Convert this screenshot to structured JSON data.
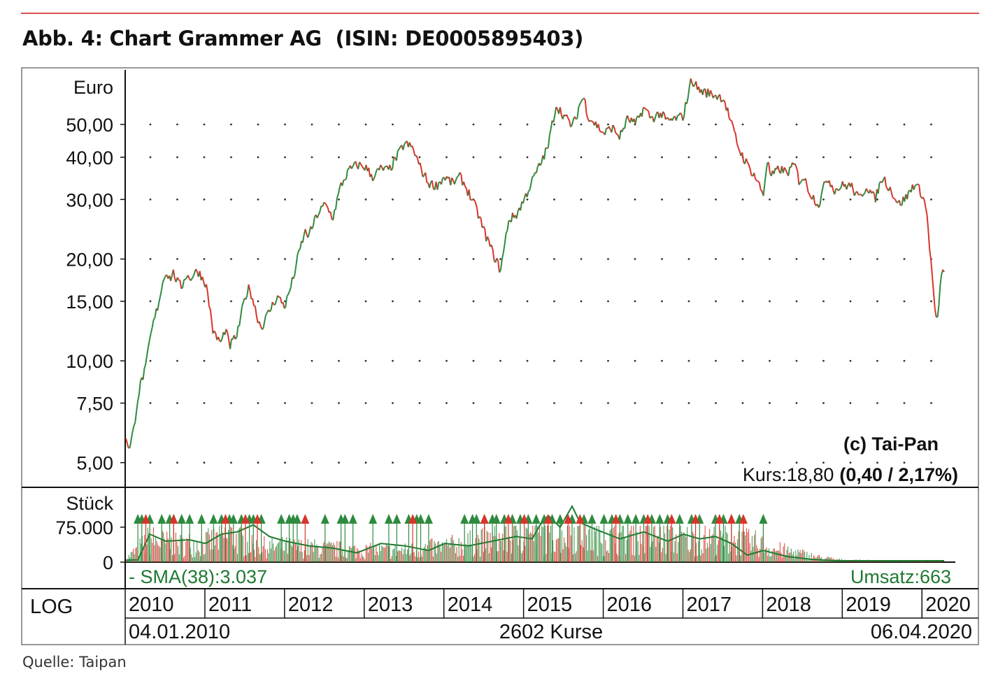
{
  "figure": {
    "title": "Abb. 4: Chart Grammer AG  (ISIN: DE0005895403)",
    "source": "Quelle: Taipan"
  },
  "chart_data": [
    {
      "type": "line",
      "panel": "price",
      "scale": "log",
      "ylabel": "Euro",
      "yticks": [
        {
          "value": 5,
          "label": "5,00"
        },
        {
          "value": 7.5,
          "label": "7,50"
        },
        {
          "value": 10,
          "label": "10,00"
        },
        {
          "value": 15,
          "label": "15,00"
        },
        {
          "value": 20,
          "label": "20,00"
        },
        {
          "value": 30,
          "label": "30,00"
        },
        {
          "value": 40,
          "label": "40,00"
        },
        {
          "value": 50,
          "label": "50,00"
        }
      ],
      "ylim": [
        4.5,
        75
      ],
      "xlim": [
        2010.0,
        2020.27
      ],
      "grid": "dotted",
      "colors": {
        "up": "#2e8b3e",
        "down": "#d9342b"
      },
      "series": [
        {
          "x": [
            2010.0,
            2010.05,
            2010.1,
            2010.15,
            2010.2,
            2010.25,
            2010.3,
            2010.35,
            2010.4,
            2010.45,
            2010.5,
            2010.55,
            2010.6,
            2010.65,
            2010.7,
            2010.75,
            2010.8,
            2010.9,
            2011.0,
            2011.1,
            2011.2,
            2011.25,
            2011.3,
            2011.4,
            2011.5,
            2011.55,
            2011.6,
            2011.65,
            2011.7,
            2011.8,
            2011.9,
            2012.0,
            2012.1,
            2012.2,
            2012.25,
            2012.3,
            2012.4,
            2012.5,
            2012.6,
            2012.7,
            2012.8,
            2012.9,
            2013.0,
            2013.1,
            2013.2,
            2013.3,
            2013.4,
            2013.5,
            2013.6,
            2013.7,
            2013.8,
            2013.9,
            2014.0,
            2014.1,
            2014.2,
            2014.3,
            2014.4,
            2014.5,
            2014.6,
            2014.7,
            2014.75,
            2014.8,
            2014.9,
            2015.0,
            2015.1,
            2015.2,
            2015.3,
            2015.4,
            2015.5,
            2015.6,
            2015.65,
            2015.7,
            2015.75,
            2015.8,
            2015.9,
            2016.0,
            2016.1,
            2016.2,
            2016.3,
            2016.4,
            2016.5,
            2016.6,
            2016.7,
            2016.8,
            2016.9,
            2017.0,
            2017.1,
            2017.2,
            2017.3,
            2017.4,
            2017.5,
            2017.6,
            2017.7,
            2017.8,
            2017.9,
            2018.0,
            2018.05,
            2018.1,
            2018.2,
            2018.3,
            2018.4,
            2018.45,
            2018.5,
            2018.6,
            2018.7,
            2018.8,
            2018.9,
            2019.0,
            2019.1,
            2019.2,
            2019.3,
            2019.4,
            2019.5,
            2019.6,
            2019.7,
            2019.8,
            2019.9,
            2020.0,
            2020.05,
            2020.1,
            2020.15,
            2020.18,
            2020.21,
            2020.23,
            2020.24,
            2020.26
          ],
          "values": [
            5.9,
            5.5,
            6.3,
            7.8,
            8.8,
            9.5,
            11.5,
            13.0,
            14.5,
            16.5,
            18.5,
            17.5,
            18.2,
            17.0,
            16.5,
            18.0,
            17.5,
            18.5,
            17.0,
            12.0,
            11.3,
            12.5,
            11.0,
            12.0,
            15.5,
            16.5,
            15.0,
            13.5,
            12.5,
            14.0,
            15.5,
            14.5,
            17.5,
            22.0,
            24.0,
            23.5,
            27.0,
            29.0,
            26.5,
            33.0,
            36.5,
            38.0,
            37.5,
            35.0,
            37.0,
            36.5,
            40.0,
            44.0,
            42.5,
            37.0,
            33.5,
            33.0,
            35.0,
            33.5,
            35.0,
            31.5,
            28.0,
            24.0,
            21.0,
            18.5,
            21.5,
            26.0,
            27.0,
            30.0,
            34.0,
            38.0,
            43.0,
            57.0,
            53.0,
            49.5,
            52.0,
            58.0,
            60.0,
            53.0,
            50.0,
            47.0,
            49.0,
            46.0,
            52.0,
            50.0,
            56.0,
            52.0,
            54.0,
            51.0,
            52.0,
            53.0,
            68.0,
            63.0,
            62.0,
            61.0,
            60.0,
            50.0,
            42.0,
            38.0,
            35.0,
            31.0,
            39.0,
            35.0,
            37.0,
            36.0,
            38.0,
            34.0,
            35.0,
            31.0,
            29.0,
            35.0,
            32.0,
            33.0,
            33.0,
            30.0,
            33.0,
            30.0,
            35.0,
            32.0,
            29.0,
            30.5,
            33.5,
            31.0,
            27.5,
            20.0,
            14.5,
            12.5,
            15.0,
            19.0,
            17.0,
            18.8
          ]
        }
      ],
      "annotations": {
        "copyright": "(c) Tai-Pan",
        "kurs_label": "Kurs:18,80",
        "kurs_change": "(0,40 / 2,17%)"
      }
    },
    {
      "type": "bar",
      "panel": "volume",
      "ylabel": "Stück",
      "yticks": [
        {
          "value": 0,
          "label": "0"
        },
        {
          "value": 75000,
          "label": "75.000"
        }
      ],
      "ylim": [
        0,
        130000
      ],
      "sma_label": "- SMA(38):3.037",
      "umsatz_label": "Umsatz:663",
      "colors": {
        "up": "#2e8b3e",
        "down": "#d9342b",
        "sma": "#1e7a30"
      },
      "volume_level": {
        "x": [
          2010.0,
          2010.3,
          2010.6,
          2011.0,
          2011.3,
          2011.6,
          2012.0,
          2012.5,
          2013.0,
          2013.5,
          2014.0,
          2014.5,
          2015.0,
          2015.4,
          2015.6,
          2016.0,
          2016.5,
          2017.0,
          2017.5,
          2017.9,
          2018.1,
          2018.4,
          2018.7,
          2019.0,
          2019.5,
          2020.0,
          2020.27
        ],
        "values": [
          8000,
          60000,
          45000,
          50000,
          70000,
          40000,
          40000,
          35000,
          30000,
          30000,
          40000,
          55000,
          70000,
          75000,
          80000,
          60000,
          65000,
          60000,
          60000,
          50000,
          35000,
          25000,
          12000,
          5000,
          3000,
          3000,
          3000
        ]
      },
      "sma": {
        "x": [
          2010.0,
          2010.15,
          2010.3,
          2010.5,
          2010.8,
          2011.0,
          2011.2,
          2011.4,
          2011.6,
          2011.8,
          2012.0,
          2012.3,
          2012.6,
          2012.9,
          2013.2,
          2013.5,
          2013.8,
          2014.0,
          2014.3,
          2014.6,
          2014.9,
          2015.1,
          2015.2,
          2015.3,
          2015.45,
          2015.6,
          2015.7,
          2015.9,
          2016.2,
          2016.5,
          2016.8,
          2017.0,
          2017.2,
          2017.4,
          2017.6,
          2017.8,
          2018.0,
          2018.3,
          2018.6,
          2018.9,
          2019.2,
          2019.6,
          2020.0,
          2020.27
        ],
        "values": [
          4000,
          5000,
          60000,
          45000,
          48000,
          40000,
          60000,
          65000,
          80000,
          55000,
          45000,
          35000,
          30000,
          20000,
          40000,
          35000,
          25000,
          40000,
          35000,
          45000,
          55000,
          50000,
          80000,
          100000,
          75000,
          120000,
          85000,
          70000,
          50000,
          65000,
          45000,
          60000,
          50000,
          55000,
          40000,
          15000,
          25000,
          12000,
          6000,
          3000,
          3000,
          3000,
          3000,
          3037
        ]
      },
      "signals_up": [
        2010.15,
        2010.2,
        2010.3,
        2010.45,
        2010.55,
        2010.6,
        2010.7,
        2010.8,
        2010.95,
        2011.1,
        2011.2,
        2011.3,
        2011.35,
        2011.45,
        2011.55,
        2011.6,
        2011.7,
        2011.95,
        2012.05,
        2012.1,
        2012.15,
        2012.5,
        2012.7,
        2012.75,
        2012.85,
        2013.1,
        2013.3,
        2013.4,
        2013.55,
        2013.65,
        2013.7,
        2013.8,
        2014.25,
        2014.35,
        2014.4,
        2014.5,
        2014.6,
        2014.65,
        2014.75,
        2014.85,
        2014.95,
        2015.05,
        2015.15,
        2015.25,
        2015.35,
        2015.45,
        2015.6,
        2015.75,
        2015.85,
        2016.0,
        2016.1,
        2016.2,
        2016.3,
        2016.4,
        2016.5,
        2016.6,
        2016.7,
        2016.8,
        2016.95,
        2017.1,
        2017.2,
        2017.4,
        2017.5,
        2017.6,
        2017.7,
        2018.0
      ],
      "signals_down": [
        2010.25,
        2010.6,
        2011.25,
        2011.5,
        2011.65,
        2012.25,
        2013.6,
        2014.5,
        2014.8,
        2015.0,
        2015.3,
        2015.55,
        2015.7,
        2016.15,
        2016.55,
        2016.85,
        2017.15,
        2017.45,
        2017.6,
        2017.75
      ]
    }
  ],
  "xaxis": {
    "scale_label": "LOG",
    "years": [
      "2010",
      "2011",
      "2012",
      "2013",
      "2014",
      "2015",
      "2016",
      "2017",
      "2018",
      "2019",
      "2020"
    ],
    "start_date": "04.01.2010",
    "count_label": "2602 Kurse",
    "end_date": "06.04.2020"
  }
}
